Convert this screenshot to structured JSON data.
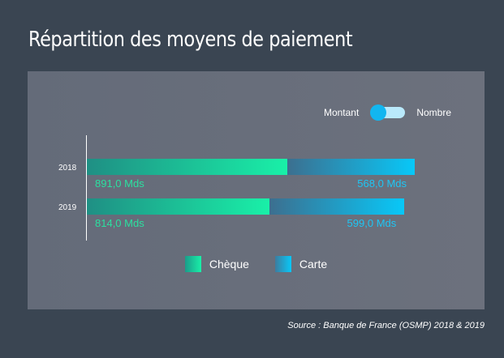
{
  "title": "Répartition des moyens de paiement",
  "toggle": {
    "left_label": "Montant",
    "right_label": "Nombre",
    "selected": "Montant"
  },
  "source": "Source : Banque de France (OSMP) 2018 & 2019",
  "colors": {
    "cheque": "#19f0a8",
    "carte": "#08c8f8",
    "background": "#3a4552",
    "panel": "#676d7a"
  },
  "chart_data": {
    "type": "bar",
    "orientation": "horizontal",
    "stacked": true,
    "categories": [
      "2018",
      "2019"
    ],
    "series": [
      {
        "name": "Chèque",
        "values": [
          891.0,
          814.0
        ],
        "labels": [
          "891,0 Mds",
          "814,0 Mds"
        ]
      },
      {
        "name": "Carte",
        "values": [
          568.0,
          599.0
        ],
        "labels": [
          "568,0 Mds",
          "599,0 Mds"
        ]
      }
    ],
    "legend": [
      "Chèque",
      "Carte"
    ],
    "legend_position": "bottom",
    "xlim": [
      0,
      1459
    ],
    "grid": false
  }
}
